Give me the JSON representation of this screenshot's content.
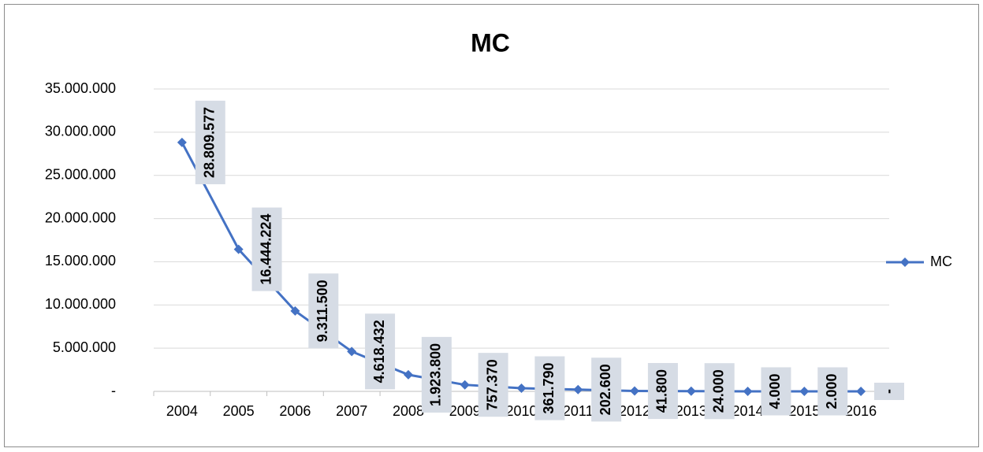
{
  "chart_data": {
    "type": "line",
    "title": "MC",
    "categories": [
      "2004",
      "2005",
      "2006",
      "2007",
      "2008",
      "2009",
      "2010",
      "2011",
      "2012",
      "2013",
      "2014",
      "2015",
      "2016"
    ],
    "series": [
      {
        "name": "MC",
        "color": "#4472c4",
        "values": [
          28809577,
          16444224,
          9311500,
          4618432,
          1923800,
          757370,
          361790,
          202600,
          41800,
          24000,
          4000,
          2000,
          0
        ],
        "value_labels": [
          "28.809.577",
          "16.444.224",
          "9.311.500",
          "4.618.432",
          "1.923.800",
          "757.370",
          "361.790",
          "202.600",
          "41.800",
          "24.000",
          "4.000",
          "2.000",
          "-"
        ]
      }
    ],
    "ylim": [
      0,
      35000000
    ],
    "yticks": [
      {
        "value": 0,
        "label": "-"
      },
      {
        "value": 5000000,
        "label": "5.000.000"
      },
      {
        "value": 10000000,
        "label": "10.000.000"
      },
      {
        "value": 15000000,
        "label": "15.000.000"
      },
      {
        "value": 20000000,
        "label": "20.000.000"
      },
      {
        "value": 25000000,
        "label": "25.000.000"
      },
      {
        "value": 30000000,
        "label": "30.000.000"
      },
      {
        "value": 35000000,
        "label": "35.000.000"
      }
    ],
    "grid": true,
    "legend": "right"
  }
}
